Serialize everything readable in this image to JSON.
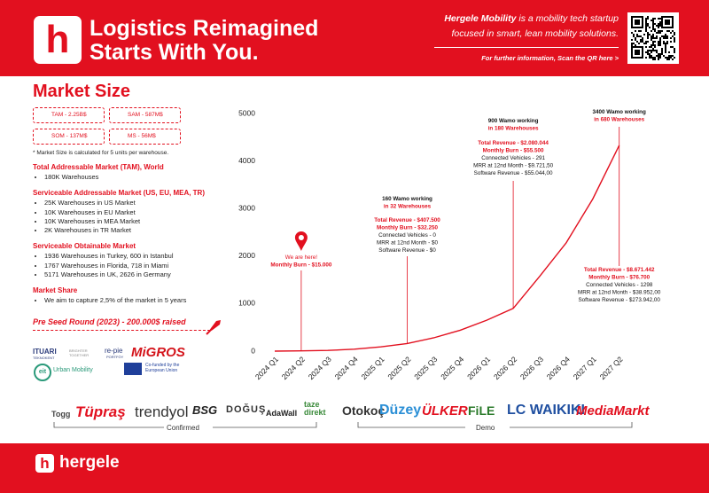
{
  "header": {
    "title_lines": [
      "Logistics Reimagined",
      "Starts With You."
    ],
    "tagline_brand": "Hergele Mobility",
    "tagline_lines": [
      "is a mobility tech startup",
      "focused in smart, lean mobility solutions."
    ],
    "qr_text": "For further information, Scan the QR here >"
  },
  "market": {
    "title": "Market Size",
    "sizes": [
      "TAM - 2.25B$",
      "SAM - 587M$",
      "SOM - 137M$",
      "MS - 56M$"
    ],
    "note": "* Market Size is calculated for 5 units per warehouse.",
    "sections": [
      {
        "heading": "Total Addressable Market (TAM), World",
        "bullets": [
          "180K Warehouses"
        ]
      },
      {
        "heading": "Serviceable Addressable Market (US, EU, MEA, TR)",
        "bullets": [
          "25K Warehouses in US Market",
          "10K Warehouses in EU Market",
          "10K Warehouses in MEA Market",
          "2K Warehouses in TR Market"
        ]
      },
      {
        "heading": "Serviceable Obtainable Market",
        "bullets": [
          "1936 Warehouses in Turkey, 600 in Istanbul",
          "1767 Warehouses in Florida, 718 in Miami",
          "5171 Warehouses in UK, 2626 in Germany"
        ]
      },
      {
        "heading": "Market Share",
        "bullets": [
          "We aim to capture 2,5% of the market in 5 years"
        ]
      }
    ],
    "funding": "Pre Seed Round (2023) - 200.000$ raised"
  },
  "partners": [
    "ITUARI",
    "TEKNOKENT",
    "BRIGHTER TOGETHER",
    "re-pie",
    "PORTFÖY",
    "MiGROS",
    "eit",
    "Urban Mobility",
    "Co-funded by the European Union"
  ],
  "chart_data": {
    "type": "line",
    "categories": [
      "2024 Q1",
      "2024 Q2",
      "2024 Q3",
      "2024 Q4",
      "2025 Q1",
      "2025 Q2",
      "2025 Q3",
      "2025 Q4",
      "2026 Q1",
      "2026 Q2",
      "2026 Q3",
      "2026 Q4",
      "2027 Q1",
      "2027 Q2"
    ],
    "series": [
      {
        "color": "#e2101f",
        "values": [
          0,
          5,
          15,
          40,
          90,
          160,
          280,
          440,
          650,
          900,
          1575,
          2280,
          3200,
          4330
        ]
      }
    ],
    "ylim": [
      0,
      5000
    ],
    "yticks": [
      0,
      1000,
      2000,
      3000,
      4000,
      5000
    ],
    "grid": false,
    "annotations": [
      {
        "heading": [],
        "details": [
          "We are here!",
          "Monthly Burn - $15.000"
        ]
      },
      {
        "heading": [
          "160 Wamo working",
          "in 32 Warehouses"
        ],
        "details": [
          "Total Revenue - $407.500",
          "Monthly Burn - $32.250",
          "Connected Vehicles - 0",
          "MRR at 12nd Month - $0",
          "Software Revenue - $0"
        ]
      },
      {
        "heading": [
          "900 Wamo working",
          "in 180 Warehouses"
        ],
        "details": [
          "Total Revenue - $2.080.044",
          "Monthly Burn - $55.500",
          "Connected Vehicles - 291",
          "MRR at 12nd Month - $9.721,50",
          "Software Revenue - $55.044,00"
        ]
      },
      {
        "heading": [
          "3400 Wamo working",
          "in 680 Warehouses"
        ],
        "details": [
          "Total Revenue - $8.671.442",
          "Monthly Burn - $76.700",
          "Connected Vehicles - 1298",
          "MRR at 12nd Month - $38.952,00",
          "Software Revenue - $273.942,00"
        ]
      }
    ]
  },
  "customers": {
    "confirmed": [
      "Togg",
      "Tüpraş",
      "trendyol",
      "BSG",
      "DOĞUŞ",
      "AdaWall",
      "taze direkt"
    ],
    "confirmed_label": "Confirmed",
    "demo": [
      "Otokoç",
      "Düzey",
      "ÜLKER",
      "FiLE",
      "LC WAIKIKI",
      "MediaMarkt"
    ],
    "demo_label": "Demo"
  },
  "footer": {
    "brand": "hergele"
  }
}
